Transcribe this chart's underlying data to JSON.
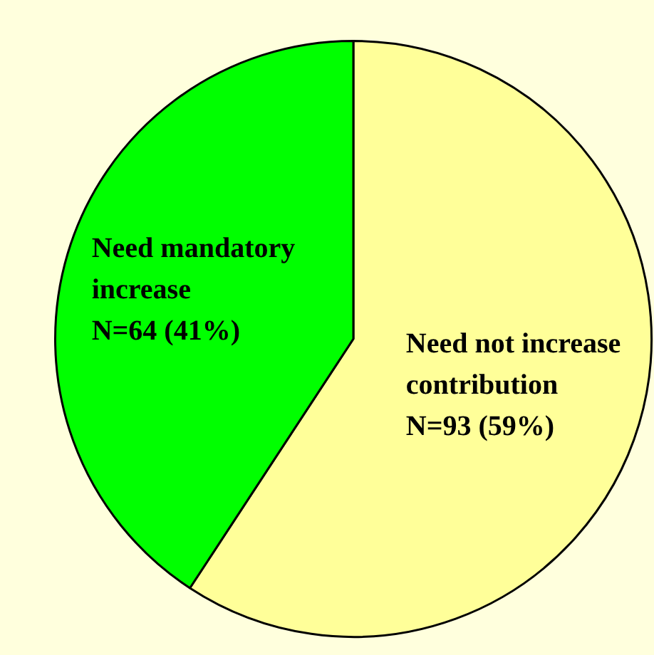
{
  "chart_data": {
    "type": "pie",
    "categories": [
      "Need not increase contribution",
      "Need mandatory increase"
    ],
    "values": [
      93,
      64
    ],
    "colors": [
      "#ffff99",
      "#00ff00"
    ],
    "value_labels": [
      "N=93 (59%)",
      "N=64 (41%)"
    ],
    "legend": false
  }
}
